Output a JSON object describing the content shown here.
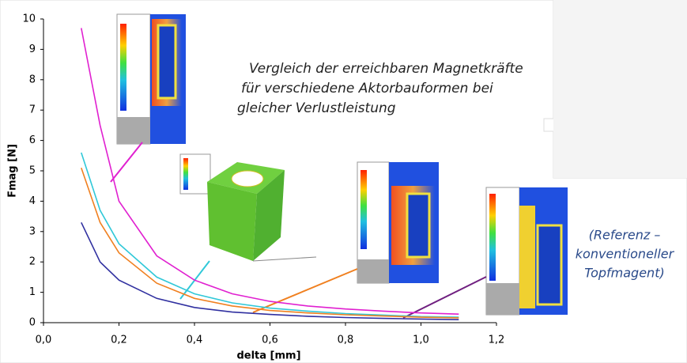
{
  "chart_data": {
    "type": "line",
    "xlabel": "delta [mm]",
    "ylabel": "Fmag [N]",
    "annotations": [
      [
        "Vergleich der erreichbaren Magnetkräfte",
        "für verschiedene Aktorbauformen bei",
        "gleicher Verlustleistung"
      ],
      [
        "(Referenz –",
        "konventioneller",
        "Topfmagent)"
      ]
    ],
    "x": [
      0.1,
      0.15,
      0.2,
      0.3,
      0.4,
      0.5,
      0.6,
      0.7,
      0.8,
      0.9,
      1.0,
      1.1
    ],
    "series": [
      {
        "color": "#e020d0",
        "values": [
          9.7,
          6.5,
          4.0,
          2.2,
          1.4,
          0.95,
          0.7,
          0.55,
          0.45,
          0.38,
          0.32,
          0.28
        ]
      },
      {
        "color": "#30c8d8",
        "values": [
          5.6,
          3.7,
          2.6,
          1.5,
          0.95,
          0.65,
          0.48,
          0.38,
          0.3,
          0.25,
          0.2,
          0.18
        ]
      },
      {
        "color": "#f08020",
        "values": [
          5.1,
          3.3,
          2.3,
          1.3,
          0.8,
          0.55,
          0.4,
          0.32,
          0.26,
          0.22,
          0.18,
          0.16
        ]
      },
      {
        "color": "#3030a0",
        "values": [
          3.3,
          2.0,
          1.4,
          0.8,
          0.5,
          0.35,
          0.27,
          0.21,
          0.17,
          0.14,
          0.12,
          0.1
        ]
      }
    ],
    "xlim": [
      0,
      1.2
    ],
    "xticks": [
      {
        "value": 0,
        "label": "0,0"
      },
      {
        "value": 0.2,
        "label": "0,2"
      },
      {
        "value": 0.4,
        "label": "0,4"
      },
      {
        "value": 0.6,
        "label": "0,6"
      },
      {
        "value": 0.8,
        "label": "0,8"
      },
      {
        "value": 1.0,
        "label": "1,0"
      },
      {
        "value": 1.2,
        "label": "1,2"
      }
    ],
    "ylim": [
      0,
      10
    ],
    "yticks": [
      0,
      1,
      2,
      3,
      4,
      5,
      6,
      7,
      8,
      9,
      10
    ],
    "grid": false
  }
}
